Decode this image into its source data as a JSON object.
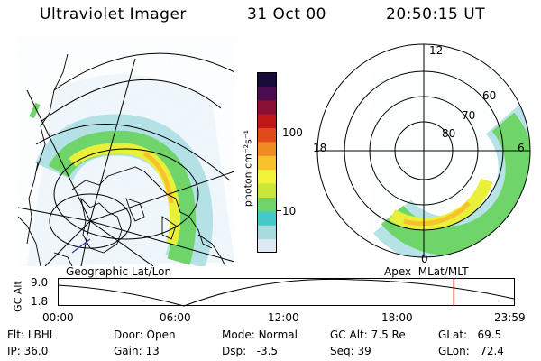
{
  "header": {
    "instrument": "Ultraviolet Imager",
    "date": "31 Oct 00",
    "time": "20:50:15 UT"
  },
  "colorbar": {
    "unit_label": "photon cm⁻²s⁻¹",
    "tick_100": "100",
    "tick_10": "10",
    "colors": [
      "#dde9f5",
      "#a8dbe0",
      "#42c9c8",
      "#6fd56a",
      "#c9e63a",
      "#f2f23a",
      "#f7c22c",
      "#f08a24",
      "#e24a1e",
      "#c01818",
      "#8a0f35",
      "#4c0b4f",
      "#190a3a"
    ]
  },
  "left_panel": {
    "caption": "Geographic Lat/Lon"
  },
  "right_panel": {
    "caption": "Apex  MLat/MLT",
    "mlt_12": "12",
    "mlt_18": "18",
    "mlt_6": "6",
    "mlt_0": "0",
    "lat_60": "60",
    "lat_70": "70",
    "lat_80": "80"
  },
  "altitude_plot": {
    "axis_label": "GC Alt",
    "y_max": "9.0",
    "y_min": "1.8",
    "x_ticks": [
      "00:00",
      "06:00",
      "12:00",
      "18:00",
      "23:59"
    ],
    "current_time_hours": 20.84,
    "marker_color": "#e00000"
  },
  "footer": {
    "flt_label": "Flt:",
    "flt_value": "LBHL",
    "ip_label": "IP:",
    "ip_value": "36.0",
    "door_label": "Door:",
    "door_value": "Open",
    "gain_label": "Gain:",
    "gain_value": "13",
    "mode_label": "Mode:",
    "mode_value": "Normal",
    "dsp_label": "Dsp:",
    "dsp_value": "-3.5",
    "gcalt_label": "GC Alt:",
    "gcalt_value": "7.5 Re",
    "seq_label": "Seq:",
    "seq_value": "39",
    "glat_label": "GLat:",
    "glat_value": "69.5",
    "glon_label": "GLon:",
    "glon_value": "72.4"
  }
}
